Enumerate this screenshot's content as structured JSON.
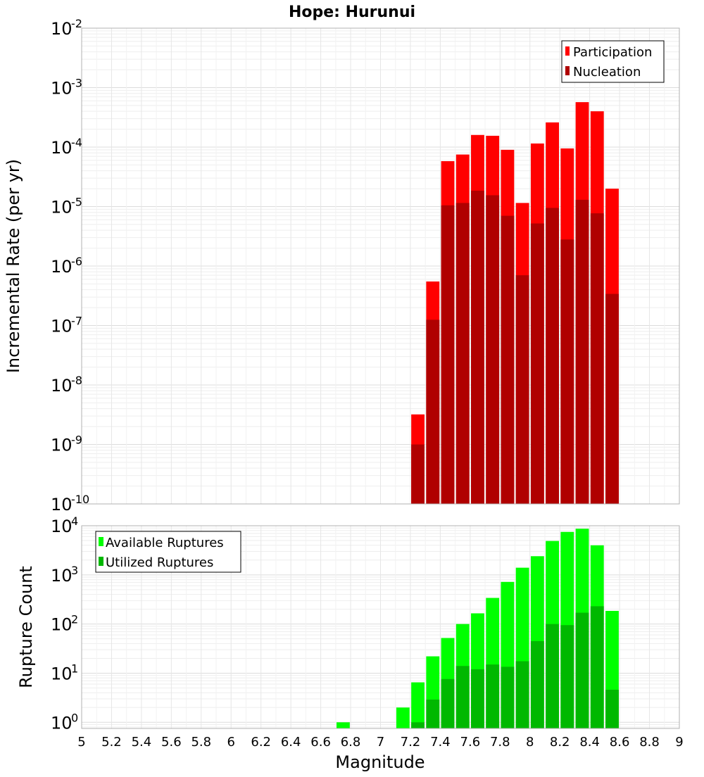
{
  "chart_data": [
    {
      "type": "bar",
      "title": "Hope: Hurunui",
      "xlabel": "Magnitude",
      "ylabel": "Incremental Rate (per yr)",
      "yscale": "log",
      "ylim": [
        1e-10,
        0.01
      ],
      "ytick_exponents": [
        "-10",
        "-9",
        "-8",
        "-7",
        "-6",
        "-5",
        "-4",
        "-3",
        "-2"
      ],
      "xlim": [
        5,
        9
      ],
      "grid": true,
      "legend_position": "top-right",
      "categories": [
        7.25,
        7.35,
        7.45,
        7.55,
        7.65,
        7.75,
        7.85,
        7.95,
        8.05,
        8.15,
        8.25,
        8.35,
        8.45,
        8.55
      ],
      "series": [
        {
          "name": "Participation",
          "color": "#ff0000",
          "values": [
            3.2e-09,
            5.5e-07,
            5.8e-05,
            7.5e-05,
            0.00016,
            0.000155,
            9e-05,
            1.15e-05,
            0.000115,
            0.00026,
            9.5e-05,
            0.00057,
            0.0004,
            2e-05
          ]
        },
        {
          "name": "Nucleation",
          "color": "#b00000",
          "values": [
            1e-09,
            1.25e-07,
            1.05e-05,
            1.15e-05,
            1.85e-05,
            1.55e-05,
            7e-06,
            7e-07,
            5.2e-06,
            9.5e-06,
            2.8e-06,
            1.3e-05,
            7.7e-06,
            3.4e-07
          ]
        }
      ]
    },
    {
      "type": "bar",
      "xlabel": "Magnitude",
      "ylabel": "Rupture Count",
      "yscale": "log",
      "ylim": [
        0.75,
        10000
      ],
      "ytick_exponents": [
        "0",
        "1",
        "2",
        "3",
        "4"
      ],
      "xlim": [
        5,
        9
      ],
      "xticks": [
        "5",
        "5.2",
        "5.4",
        "5.6",
        "5.8",
        "6",
        "6.2",
        "6.4",
        "6.6",
        "6.8",
        "7",
        "7.2",
        "7.4",
        "7.6",
        "7.8",
        "8",
        "8.2",
        "8.4",
        "8.6",
        "8.8",
        "9"
      ],
      "grid": true,
      "legend_position": "top-left",
      "categories": [
        6.75,
        7.15,
        7.25,
        7.35,
        7.45,
        7.55,
        7.65,
        7.75,
        7.85,
        7.95,
        8.05,
        8.15,
        8.25,
        8.35,
        8.45,
        8.55
      ],
      "series": [
        {
          "name": "Available Ruptures",
          "color": "#00ff00",
          "values": [
            1,
            2,
            6.5,
            22,
            52,
            100,
            165,
            340,
            720,
            1400,
            2400,
            4900,
            7500,
            8700,
            4000,
            185
          ]
        },
        {
          "name": "Utilized Ruptures",
          "color": "#00b800",
          "values": [
            null,
            null,
            1,
            2.9,
            7.6,
            14,
            12,
            15,
            13.5,
            17.5,
            45,
            100,
            95,
            170,
            230,
            4.6
          ]
        }
      ]
    }
  ],
  "tick_base": "10"
}
